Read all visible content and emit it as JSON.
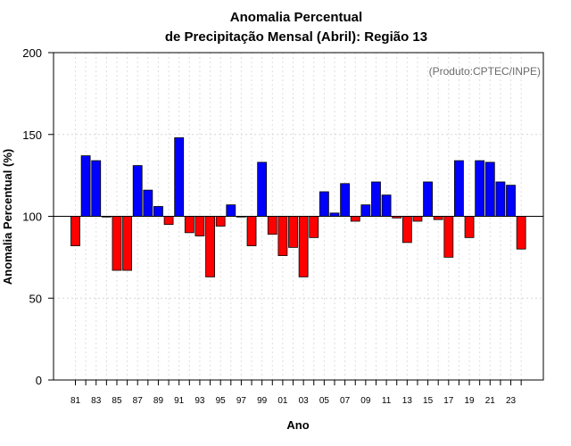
{
  "chart_data": {
    "type": "bar",
    "title": [
      "Anomalia Percentual",
      "de Precipitação Mensal (Abril): Região 13"
    ],
    "xlabel": "Ano",
    "ylabel": "Anomalia Percentual (%)",
    "credit": "(Produto:CPTEC/INPE)",
    "ylim": [
      0,
      200
    ],
    "yticks": [
      0,
      50,
      100,
      150,
      200
    ],
    "baseline": 100,
    "grid": true,
    "colors": {
      "above": "#0000ff",
      "below": "#ff0000"
    },
    "categories": [
      "81",
      "82",
      "83",
      "84",
      "85",
      "86",
      "87",
      "88",
      "89",
      "90",
      "91",
      "92",
      "93",
      "94",
      "95",
      "96",
      "97",
      "98",
      "99",
      "00",
      "01",
      "02",
      "03",
      "04",
      "05",
      "06",
      "07",
      "08",
      "09",
      "10",
      "11",
      "12",
      "13",
      "14",
      "15",
      "16",
      "17",
      "18",
      "19",
      "20",
      "21",
      "22",
      "23",
      "24"
    ],
    "xtick_labels": [
      "81",
      "83",
      "85",
      "87",
      "89",
      "91",
      "93",
      "95",
      "97",
      "99",
      "01",
      "03",
      "05",
      "07",
      "09",
      "11",
      "13",
      "15",
      "17",
      "19",
      "21",
      "23"
    ],
    "values": [
      82,
      137,
      134,
      100,
      67,
      67,
      131,
      116,
      106,
      95,
      148,
      90,
      88,
      63,
      94,
      107,
      100,
      82,
      133,
      89,
      76,
      81,
      63,
      87,
      115,
      102,
      120,
      97,
      107,
      121,
      113,
      99,
      84,
      97,
      121,
      98,
      75,
      134,
      87,
      134,
      133,
      121,
      119,
      80
    ]
  }
}
